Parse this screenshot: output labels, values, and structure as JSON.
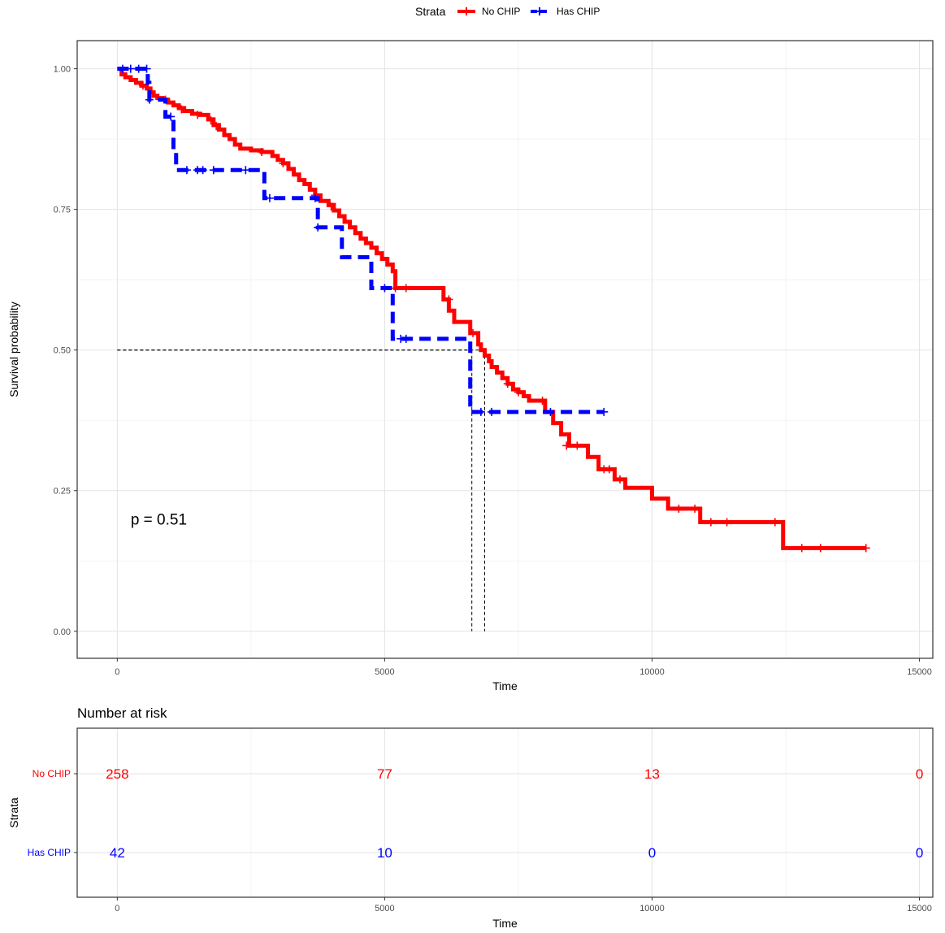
{
  "legend": {
    "title": "Strata",
    "items": [
      {
        "label": "No CHIP",
        "color": "#ff0000"
      },
      {
        "label": "Has CHIP",
        "color": "#0000ff"
      }
    ]
  },
  "chart_data": [
    {
      "type": "line",
      "subtype": "kaplan-meier",
      "title": "",
      "xlabel": "Time",
      "ylabel": "Survival probability",
      "xlim": [
        -750,
        15250
      ],
      "ylim": [
        -0.048,
        1.05
      ],
      "x_ticks": [
        0,
        5000,
        10000,
        15000
      ],
      "y_ticks": [
        0.0,
        0.25,
        0.5,
        0.75,
        1.0
      ],
      "x_tick_labels": [
        "0",
        "5000",
        "10000",
        "15000"
      ],
      "y_tick_labels": [
        "0.00",
        "0.25",
        "0.50",
        "0.75",
        "1.00"
      ],
      "grid": true,
      "legend_position": "top",
      "annotation": "p = 0.51",
      "annotation_at": {
        "x": 250,
        "y": 0.19
      },
      "median_lines": [
        {
          "series": "No CHIP",
          "median_time": 6870,
          "y": 0.5
        },
        {
          "series": "Has CHIP",
          "median_time": 6630,
          "y": 0.5
        }
      ],
      "series": [
        {
          "name": "No CHIP",
          "color": "#ff0000",
          "style": "solid",
          "steps": [
            [
              0,
              1.0
            ],
            [
              80,
              0.99
            ],
            [
              150,
              0.985
            ],
            [
              250,
              0.98
            ],
            [
              350,
              0.975
            ],
            [
              450,
              0.97
            ],
            [
              550,
              0.965
            ],
            [
              620,
              0.958
            ],
            [
              680,
              0.952
            ],
            [
              750,
              0.948
            ],
            [
              850,
              0.945
            ],
            [
              950,
              0.94
            ],
            [
              1050,
              0.935
            ],
            [
              1150,
              0.93
            ],
            [
              1250,
              0.925
            ],
            [
              1400,
              0.92
            ],
            [
              1550,
              0.918
            ],
            [
              1700,
              0.91
            ],
            [
              1800,
              0.9
            ],
            [
              1900,
              0.892
            ],
            [
              2000,
              0.882
            ],
            [
              2100,
              0.875
            ],
            [
              2200,
              0.865
            ],
            [
              2300,
              0.858
            ],
            [
              2500,
              0.855
            ],
            [
              2700,
              0.852
            ],
            [
              2900,
              0.845
            ],
            [
              3000,
              0.838
            ],
            [
              3100,
              0.832
            ],
            [
              3200,
              0.822
            ],
            [
              3300,
              0.812
            ],
            [
              3400,
              0.802
            ],
            [
              3500,
              0.795
            ],
            [
              3600,
              0.785
            ],
            [
              3700,
              0.775
            ],
            [
              3800,
              0.765
            ],
            [
              3950,
              0.758
            ],
            [
              4050,
              0.748
            ],
            [
              4150,
              0.738
            ],
            [
              4250,
              0.728
            ],
            [
              4350,
              0.718
            ],
            [
              4450,
              0.708
            ],
            [
              4550,
              0.698
            ],
            [
              4650,
              0.69
            ],
            [
              4750,
              0.682
            ],
            [
              4850,
              0.672
            ],
            [
              4950,
              0.662
            ],
            [
              5050,
              0.652
            ],
            [
              5150,
              0.64
            ],
            [
              5200,
              0.61
            ],
            [
              6100,
              0.59
            ],
            [
              6200,
              0.57
            ],
            [
              6300,
              0.55
            ],
            [
              6600,
              0.53
            ],
            [
              6750,
              0.51
            ],
            [
              6800,
              0.5
            ],
            [
              6870,
              0.49
            ],
            [
              6950,
              0.48
            ],
            [
              7000,
              0.47
            ],
            [
              7100,
              0.46
            ],
            [
              7200,
              0.45
            ],
            [
              7300,
              0.44
            ],
            [
              7400,
              0.43
            ],
            [
              7500,
              0.425
            ],
            [
              7600,
              0.418
            ],
            [
              7700,
              0.41
            ],
            [
              8000,
              0.39
            ],
            [
              8150,
              0.37
            ],
            [
              8300,
              0.35
            ],
            [
              8450,
              0.33
            ],
            [
              8800,
              0.31
            ],
            [
              9000,
              0.288
            ],
            [
              9300,
              0.27
            ],
            [
              9500,
              0.255
            ],
            [
              10000,
              0.236
            ],
            [
              10300,
              0.218
            ],
            [
              10900,
              0.194
            ],
            [
              12450,
              0.148
            ],
            [
              14000,
              0.148
            ]
          ],
          "censors": [
            [
              480,
              0.97
            ],
            [
              900,
              0.945
            ],
            [
              1200,
              0.928
            ],
            [
              1500,
              0.918
            ],
            [
              1750,
              0.908
            ],
            [
              1850,
              0.898
            ],
            [
              2700,
              0.852
            ],
            [
              3100,
              0.832
            ],
            [
              3700,
              0.775
            ],
            [
              4000,
              0.755
            ],
            [
              5200,
              0.61
            ],
            [
              5400,
              0.61
            ],
            [
              6200,
              0.59
            ],
            [
              6650,
              0.53
            ],
            [
              7300,
              0.44
            ],
            [
              7500,
              0.425
            ],
            [
              7950,
              0.41
            ],
            [
              8400,
              0.33
            ],
            [
              8600,
              0.33
            ],
            [
              9100,
              0.288
            ],
            [
              9200,
              0.288
            ],
            [
              9400,
              0.27
            ],
            [
              10500,
              0.218
            ],
            [
              10800,
              0.218
            ],
            [
              11100,
              0.194
            ],
            [
              11400,
              0.194
            ],
            [
              12300,
              0.194
            ],
            [
              12800,
              0.148
            ],
            [
              13150,
              0.148
            ],
            [
              14000,
              0.148
            ]
          ]
        },
        {
          "name": "Has CHIP",
          "color": "#0000ff",
          "style": "dashed",
          "steps": [
            [
              0,
              1.0
            ],
            [
              570,
              0.975
            ],
            [
              600,
              0.945
            ],
            [
              900,
              0.915
            ],
            [
              1050,
              0.855
            ],
            [
              1100,
              0.82
            ],
            [
              2750,
              0.77
            ],
            [
              3750,
              0.718
            ],
            [
              4200,
              0.665
            ],
            [
              4750,
              0.61
            ],
            [
              5150,
              0.52
            ],
            [
              6600,
              0.39
            ],
            [
              9100,
              0.39
            ]
          ],
          "censors": [
            [
              100,
              1.0
            ],
            [
              250,
              1.0
            ],
            [
              400,
              1.0
            ],
            [
              550,
              1.0
            ],
            [
              600,
              0.945
            ],
            [
              1000,
              0.915
            ],
            [
              1300,
              0.82
            ],
            [
              1500,
              0.82
            ],
            [
              1600,
              0.82
            ],
            [
              1800,
              0.82
            ],
            [
              2400,
              0.82
            ],
            [
              2850,
              0.77
            ],
            [
              3700,
              0.77
            ],
            [
              3750,
              0.718
            ],
            [
              5000,
              0.61
            ],
            [
              5300,
              0.52
            ],
            [
              5400,
              0.52
            ],
            [
              6800,
              0.39
            ],
            [
              7000,
              0.39
            ],
            [
              8100,
              0.39
            ],
            [
              9100,
              0.39
            ]
          ]
        }
      ]
    },
    {
      "type": "table",
      "title": "Number at risk",
      "xlabel": "Time",
      "ylabel": "Strata",
      "xlim": [
        -750,
        15250
      ],
      "x_ticks": [
        0,
        5000,
        10000,
        15000
      ],
      "x_tick_labels": [
        "0",
        "5000",
        "10000",
        "15000"
      ],
      "grid": true,
      "rows": [
        {
          "label": "No CHIP",
          "color": "#ff0000",
          "values": [
            "258",
            "77",
            "13",
            "0"
          ]
        },
        {
          "label": "Has CHIP",
          "color": "#0000ff",
          "values": [
            "42",
            "10",
            "0",
            "0"
          ]
        }
      ]
    }
  ]
}
